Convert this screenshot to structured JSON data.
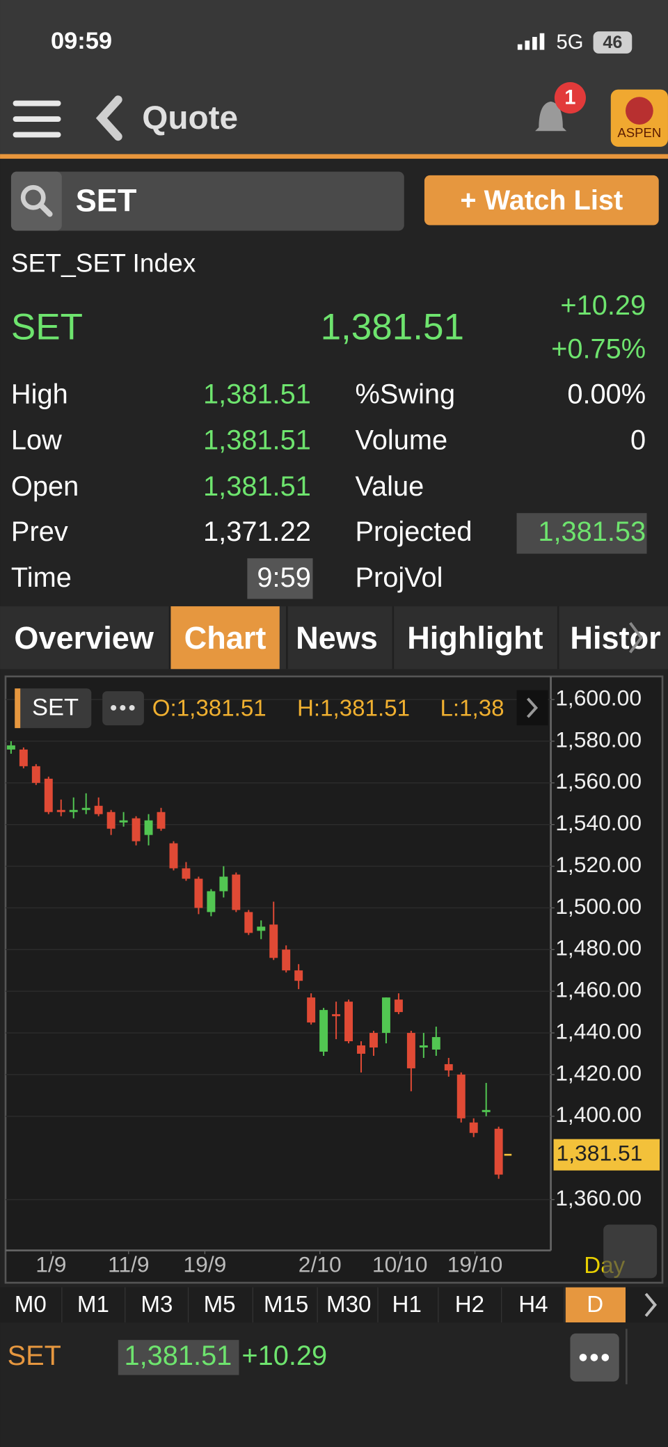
{
  "status_bar": {
    "time": "09:59",
    "network": "5G",
    "battery": "46"
  },
  "nav": {
    "title": "Quote",
    "badge": "1",
    "logo": "ASPEN"
  },
  "search": {
    "query": "SET",
    "button": "+ Watch List"
  },
  "quote": {
    "name": "SET_SET Index",
    "symbol": "SET",
    "last": "1,381.51",
    "change": "+10.29",
    "percent": "+0.75%",
    "left_fields": [
      {
        "label": "High",
        "value": "1,381.51"
      },
      {
        "label": "Low",
        "value": "1,381.51"
      },
      {
        "label": "Open",
        "value": "1,381.51"
      },
      {
        "label": "Prev",
        "value": "1,371.22"
      },
      {
        "label": "Time",
        "value": "9:59"
      }
    ],
    "right_fields": [
      {
        "label": "%Swing",
        "value": "0.00%"
      },
      {
        "label": "Volume",
        "value": "0"
      },
      {
        "label": "Value"
      },
      {
        "label": "Projected",
        "value": "1,381.53"
      },
      {
        "label": "ProjVol"
      }
    ]
  },
  "tabs": [
    "Overview",
    "Chart",
    "News",
    "Highlight",
    "Histor"
  ],
  "chart_data": {
    "type": "candlestick",
    "symbol": "SET",
    "info": [
      "O:1,381.51",
      "H:1,381.51",
      "L:1,38"
    ],
    "up_color": "#52c652",
    "down_color": "#e04a35",
    "x": [
      0,
      1,
      2,
      3,
      4,
      5,
      6,
      7,
      8,
      9,
      10,
      11,
      12,
      13,
      14,
      15,
      16,
      17,
      18,
      19,
      20,
      21,
      22,
      23,
      24,
      25,
      26,
      27,
      28,
      29,
      30,
      31,
      32,
      33,
      34,
      35,
      36,
      37,
      38,
      39
    ],
    "open": [
      1576,
      1576,
      1568,
      1562,
      1547,
      1546,
      1547,
      1549,
      1546,
      1541,
      1543,
      1535,
      1546,
      1531,
      1519,
      1514,
      1498,
      1508,
      1516,
      1498,
      1489,
      1492,
      1480,
      1470,
      1457,
      1431,
      1449,
      1455,
      1434,
      1440,
      1440,
      1456,
      1440,
      1433,
      1432,
      1425,
      1420,
      1397,
      1402,
      1394
    ],
    "high": [
      1580,
      1577,
      1569,
      1563,
      1552,
      1553,
      1555,
      1553,
      1547,
      1546,
      1544,
      1545,
      1548,
      1532,
      1522,
      1515,
      1509,
      1520,
      1517,
      1499,
      1494,
      1503,
      1482,
      1473,
      1459,
      1452,
      1455,
      1456,
      1436,
      1441,
      1457,
      1459,
      1441,
      1440,
      1443,
      1428,
      1421,
      1399,
      1416,
      1395
    ],
    "low": [
      1574,
      1567,
      1559,
      1545,
      1544,
      1543,
      1545,
      1544,
      1535,
      1539,
      1530,
      1530,
      1537,
      1518,
      1513,
      1497,
      1496,
      1505,
      1498,
      1487,
      1485,
      1475,
      1469,
      1461,
      1444,
      1429,
      1437,
      1435,
      1421,
      1429,
      1435,
      1449,
      1412,
      1428,
      1429,
      1419,
      1397,
      1390,
      1400,
      1370
    ],
    "close": [
      1578,
      1568,
      1560,
      1546,
      1546,
      1547,
      1548,
      1545,
      1538,
      1542,
      1532,
      1542,
      1538,
      1519,
      1514,
      1500,
      1508,
      1515,
      1499,
      1488,
      1491,
      1476,
      1470,
      1465,
      1445,
      1451,
      1448,
      1436,
      1430,
      1433,
      1457,
      1450,
      1423,
      1434,
      1438,
      1422,
      1399,
      1392,
      1403,
      1372
    ],
    "xlim": [
      -0.44,
      43.17
    ],
    "xticks": [
      {
        "value": 3.2,
        "label": "1/9"
      },
      {
        "value": 9.4,
        "label": "11/9"
      },
      {
        "value": 15.5,
        "label": "19/9"
      },
      {
        "value": 24.7,
        "label": "2/10"
      },
      {
        "value": 31.1,
        "label": "10/10"
      },
      {
        "value": 37.1,
        "label": "19/10"
      }
    ],
    "ylim": [
      1335.6,
      1610.2
    ],
    "yticks": [
      {
        "value": 1360,
        "label": "1,360.00"
      },
      {
        "value": 1400,
        "label": "1,400.00"
      },
      {
        "value": 1420,
        "label": "1,420.00"
      },
      {
        "value": 1440,
        "label": "1,440.00"
      },
      {
        "value": 1460,
        "label": "1,460.00"
      },
      {
        "value": 1480,
        "label": "1,480.00"
      },
      {
        "value": 1500,
        "label": "1,500.00"
      },
      {
        "value": 1520,
        "label": "1,520.00"
      },
      {
        "value": 1540,
        "label": "1,540.00"
      },
      {
        "value": 1560,
        "label": "1,560.00"
      },
      {
        "value": 1580,
        "label": "1,580.00"
      },
      {
        "value": 1600,
        "label": "1,600.00"
      }
    ],
    "last_price": {
      "value": 1381.51,
      "label": "1,381.51"
    },
    "grid": true,
    "period": "Day"
  },
  "timeframes": [
    "M0",
    "M1",
    "M3",
    "M5",
    "M15",
    "M30",
    "H1",
    "H2",
    "H4",
    "D"
  ],
  "bottom": {
    "symbol": "SET",
    "last": "1,381.51",
    "change": "+10.29"
  }
}
